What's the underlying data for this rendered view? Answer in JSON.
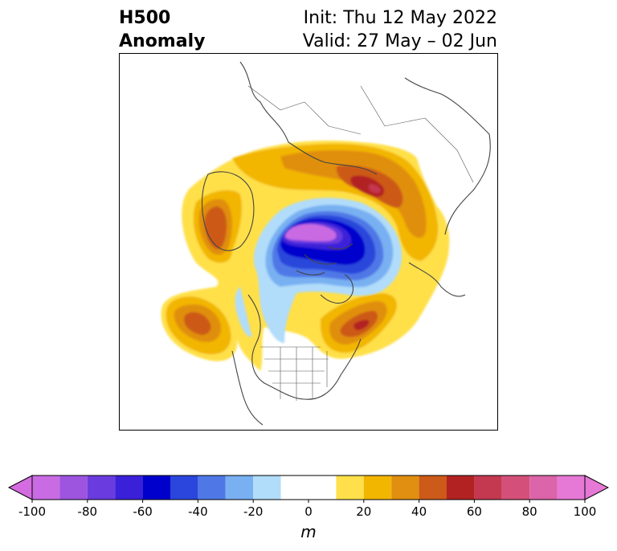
{
  "title": {
    "line1": "H500",
    "line2": "Anomaly",
    "init": "Init: Thu 12 May 2022",
    "valid": "Valid: 27 May – 02 Jun"
  },
  "colorbar": {
    "unit": "m",
    "ticks": [
      "-100",
      "-80",
      "-60",
      "-40",
      "-20",
      "0",
      "20",
      "40",
      "60",
      "80",
      "100"
    ],
    "min": -100,
    "max": 100,
    "extend": "both",
    "bins": [
      {
        "from": -100,
        "to": -90,
        "color": "#c96be3"
      },
      {
        "from": -90,
        "to": -80,
        "color": "#9d54df"
      },
      {
        "from": -80,
        "to": -70,
        "color": "#6a3bde"
      },
      {
        "from": -70,
        "to": -60,
        "color": "#3a20d8"
      },
      {
        "from": -60,
        "to": -50,
        "color": "#0000cc"
      },
      {
        "from": -50,
        "to": -40,
        "color": "#2a46dc"
      },
      {
        "from": -40,
        "to": -30,
        "color": "#4f78e6"
      },
      {
        "from": -30,
        "to": -20,
        "color": "#78b0f2"
      },
      {
        "from": -20,
        "to": -10,
        "color": "#b1dcfa"
      },
      {
        "from": -10,
        "to": 10,
        "color": "#ffffff"
      },
      {
        "from": 10,
        "to": 20,
        "color": "#ffe04a"
      },
      {
        "from": 20,
        "to": 30,
        "color": "#f2b600"
      },
      {
        "from": 30,
        "to": 40,
        "color": "#e08f10"
      },
      {
        "from": 40,
        "to": 50,
        "color": "#cc5a18"
      },
      {
        "from": 50,
        "to": 60,
        "color": "#b22222"
      },
      {
        "from": 60,
        "to": 70,
        "color": "#c43850"
      },
      {
        "from": 70,
        "to": 80,
        "color": "#d4507a"
      },
      {
        "from": 80,
        "to": 90,
        "color": "#dc64a8"
      },
      {
        "from": 90,
        "to": 100,
        "color": "#e678d6"
      }
    ],
    "extend_low_color": "#d46be0",
    "extend_high_color": "#e678d6"
  },
  "map": {
    "projection": "polar stereographic, North America / Arctic",
    "features": [
      {
        "name": "polar low",
        "sign": "negative",
        "peak_m": -100
      },
      {
        "name": "ridge over central Asia",
        "sign": "positive",
        "peak_m": 60
      },
      {
        "name": "ridge over northeast Europe / Scandinavia",
        "sign": "positive",
        "peak_m": 50
      },
      {
        "name": "ridge over eastern Canada / northwest Atlantic",
        "sign": "positive",
        "peak_m": 50
      },
      {
        "name": "ridge over Gulf of Alaska / northeast Pacific",
        "sign": "positive",
        "peak_m": 40
      },
      {
        "name": "trough over western Canada",
        "sign": "negative",
        "peak_m": -30
      }
    ]
  }
}
